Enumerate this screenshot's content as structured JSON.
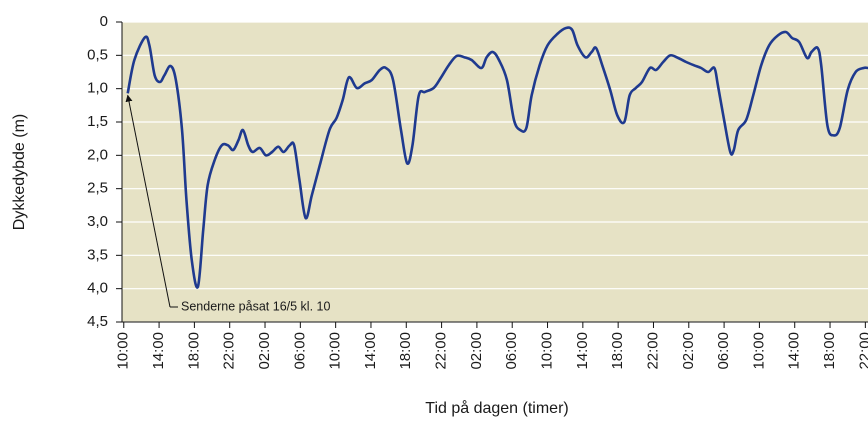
{
  "chart_data": {
    "type": "line",
    "xlabel": "Tid på dagen (timer)",
    "ylabel": "Dykkedybde (m)",
    "annotation": "Senderne påsat 16/5 kl. 10",
    "inverted_y": true,
    "grid": true,
    "background": "#e6e2c5",
    "xlim": [
      -0.2,
      84.3
    ],
    "ylim": [
      0,
      4.5
    ],
    "xticks": [
      {
        "value": 0,
        "label": "10:00"
      },
      {
        "value": 4,
        "label": "14:00"
      },
      {
        "value": 8,
        "label": "18:00"
      },
      {
        "value": 12,
        "label": "22:00"
      },
      {
        "value": 16,
        "label": "02:00"
      },
      {
        "value": 20,
        "label": "06:00"
      },
      {
        "value": 24,
        "label": "10:00"
      },
      {
        "value": 28,
        "label": "14:00"
      },
      {
        "value": 32,
        "label": "18:00"
      },
      {
        "value": 36,
        "label": "22:00"
      },
      {
        "value": 40,
        "label": "02:00"
      },
      {
        "value": 44,
        "label": "06:00"
      },
      {
        "value": 48,
        "label": "10:00"
      },
      {
        "value": 52,
        "label": "14:00"
      },
      {
        "value": 56,
        "label": "18:00"
      },
      {
        "value": 60,
        "label": "22:00"
      },
      {
        "value": 64,
        "label": "02:00"
      },
      {
        "value": 68,
        "label": "06:00"
      },
      {
        "value": 72,
        "label": "10:00"
      },
      {
        "value": 76,
        "label": "14:00"
      },
      {
        "value": 80,
        "label": "18:00"
      },
      {
        "value": 84,
        "label": "22:00"
      }
    ],
    "yticks": [
      0,
      {
        "value": 0.5,
        "label": "0,5"
      },
      {
        "value": 1.0,
        "label": "1,0"
      },
      {
        "value": 1.5,
        "label": "1,5"
      },
      {
        "value": 2.0,
        "label": "2,0"
      },
      {
        "value": 2.5,
        "label": "2,5"
      },
      {
        "value": 3.0,
        "label": "3,0"
      },
      {
        "value": 3.5,
        "label": "3,5"
      },
      {
        "value": 4.0,
        "label": "4,0"
      },
      {
        "value": 4.5,
        "label": "4,5"
      }
    ],
    "series": [
      {
        "color": "#1f3a8f",
        "x": [
          0.45,
          1.2,
          2.4,
          2.9,
          3.5,
          4.1,
          4.6,
          5.3,
          5.9,
          6.6,
          7.1,
          7.7,
          8.4,
          9.0,
          9.5,
          10.3,
          11.1,
          11.8,
          12.4,
          13.0,
          13.5,
          14.1,
          14.6,
          15.4,
          16.1,
          16.8,
          17.5,
          18.1,
          18.8,
          19.3,
          19.9,
          20.6,
          21.3,
          22.2,
          23.3,
          24.1,
          24.8,
          25.5,
          26.4,
          27.3,
          28.1,
          29.0,
          29.7,
          30.5,
          31.4,
          32.1,
          32.7,
          33.4,
          34.1,
          35.1,
          35.9,
          36.8,
          37.7,
          38.6,
          39.4,
          40.5,
          41.1,
          41.8,
          42.5,
          43.4,
          44.2,
          44.9,
          45.6,
          46.2,
          47.1,
          48.0,
          49.1,
          50.1,
          50.8,
          51.4,
          52.3,
          53.0,
          53.5,
          54.2,
          55.1,
          55.9,
          56.7,
          57.3,
          58.0,
          58.7,
          59.6,
          60.3,
          61.1,
          61.9,
          62.8,
          63.7,
          64.6,
          65.4,
          66.2,
          66.9,
          67.3,
          68.0,
          68.7,
          69.1,
          69.6,
          70.5,
          71.3,
          72.2,
          73.1,
          74.1,
          75.0,
          75.7,
          76.5,
          77.4,
          77.9,
          78.6,
          79.0,
          79.7,
          80.4,
          81.1,
          82.0,
          82.9,
          83.8,
          84.3
        ],
        "values": [
          1.07,
          0.57,
          0.23,
          0.35,
          0.8,
          0.9,
          0.8,
          0.66,
          0.87,
          1.62,
          2.67,
          3.57,
          3.97,
          3.12,
          2.45,
          2.07,
          1.85,
          1.85,
          1.92,
          1.77,
          1.62,
          1.85,
          1.95,
          1.89,
          2.0,
          1.95,
          1.87,
          1.95,
          1.85,
          1.85,
          2.37,
          2.94,
          2.6,
          2.15,
          1.62,
          1.44,
          1.17,
          0.83,
          0.99,
          0.92,
          0.87,
          0.72,
          0.69,
          0.87,
          1.62,
          2.12,
          1.85,
          1.11,
          1.05,
          0.99,
          0.84,
          0.65,
          0.51,
          0.53,
          0.57,
          0.69,
          0.53,
          0.45,
          0.57,
          0.87,
          1.47,
          1.62,
          1.59,
          1.1,
          0.65,
          0.35,
          0.18,
          0.09,
          0.12,
          0.35,
          0.53,
          0.45,
          0.39,
          0.65,
          1.02,
          1.4,
          1.5,
          1.1,
          0.99,
          0.9,
          0.69,
          0.72,
          0.6,
          0.5,
          0.54,
          0.6,
          0.65,
          0.69,
          0.75,
          0.69,
          0.95,
          1.47,
          1.95,
          1.92,
          1.62,
          1.47,
          1.1,
          0.65,
          0.35,
          0.2,
          0.15,
          0.24,
          0.3,
          0.54,
          0.45,
          0.39,
          0.65,
          1.55,
          1.7,
          1.59,
          1.02,
          0.75,
          0.69,
          0.69
        ]
      }
    ]
  }
}
